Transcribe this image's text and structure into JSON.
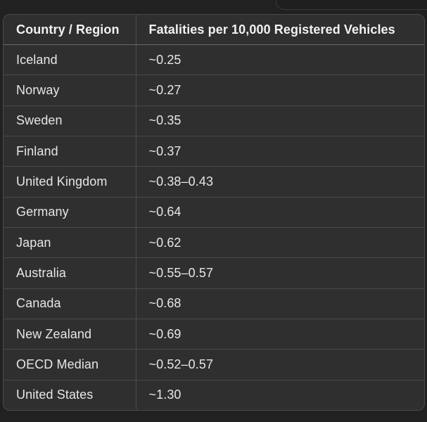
{
  "table": {
    "headers": [
      "Country / Region",
      "Fatalities per 10,000 Registered Vehicles"
    ],
    "rows": [
      [
        "Iceland",
        "~0.25"
      ],
      [
        "Norway",
        "~0.27"
      ],
      [
        "Sweden",
        "~0.35"
      ],
      [
        "Finland",
        "~0.37"
      ],
      [
        "United Kingdom",
        "~0.38–0.43"
      ],
      [
        "Germany",
        "~0.64"
      ],
      [
        "Japan",
        "~0.62"
      ],
      [
        "Australia",
        "~0.55–0.57"
      ],
      [
        "Canada",
        "~0.68"
      ],
      [
        "New Zealand",
        "~0.69"
      ],
      [
        "OECD Median",
        "~0.52–0.57"
      ],
      [
        "United States",
        "~1.30"
      ]
    ]
  }
}
